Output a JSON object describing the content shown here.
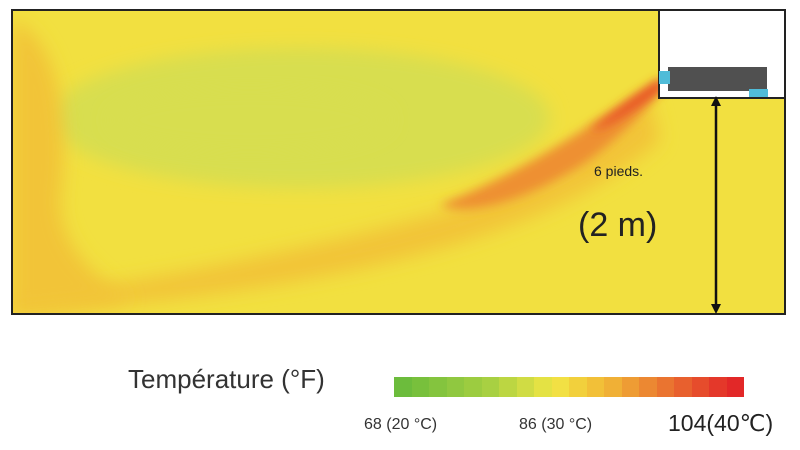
{
  "annotations": {
    "distance_ft": "6 pieds.",
    "distance_m": "(2 m)"
  },
  "legend": {
    "title": "Température (°F)",
    "ticks": [
      "68 (20 °C)",
      "86 (30 °C)",
      "104(40℃)"
    ],
    "colors": [
      "#6cbc3c",
      "#78c03c",
      "#84c43e",
      "#90c840",
      "#9ccc40",
      "#a8d042",
      "#bcd642",
      "#d0dc44",
      "#e4e244",
      "#f2e044",
      "#f2d03c",
      "#f2c038",
      "#f0b036",
      "#ee9c34",
      "#ec8832",
      "#ea7430",
      "#e8602e",
      "#e64c2c",
      "#e4382a",
      "#e22828"
    ]
  },
  "field_colors": {
    "background": "#f2e040",
    "cool_region": "#d8de50",
    "warm": "#f2c438",
    "hot": "#ee9030",
    "hottest": "#e84e28",
    "unit_body": "#505050",
    "unit_vent": "#50bcd8"
  }
}
